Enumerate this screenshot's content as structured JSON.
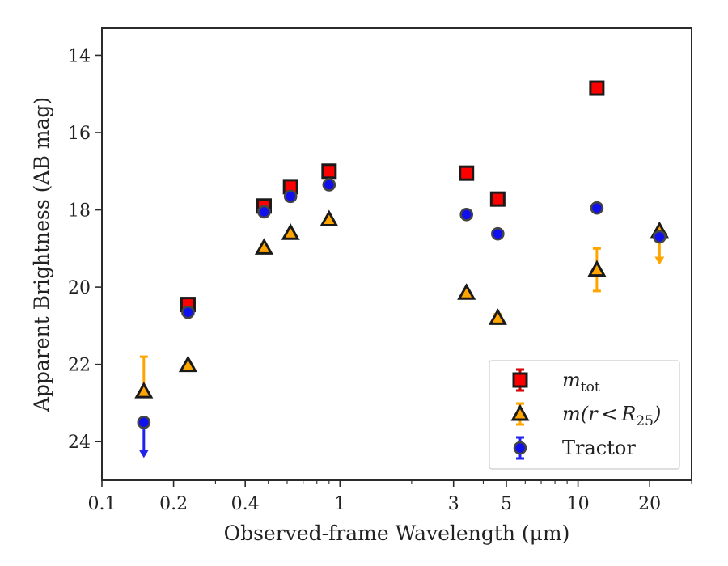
{
  "chart_data": {
    "type": "scatter",
    "title": "",
    "xlabel": "Observed-frame Wavelength (μm)",
    "ylabel": "Apparent Brightness (AB mag)",
    "xscale": "log",
    "xlim": [
      0.1,
      30
    ],
    "ylim": [
      25.0,
      13.3
    ],
    "y_inverted": true,
    "grid": false,
    "legend_position": "lower right",
    "x_ticks": [
      {
        "value": 0.1,
        "label": "0.1"
      },
      {
        "value": 0.2,
        "label": "0.2"
      },
      {
        "value": 0.4,
        "label": "0.4"
      },
      {
        "value": 1,
        "label": "1"
      },
      {
        "value": 3,
        "label": "3"
      },
      {
        "value": 5,
        "label": "5"
      },
      {
        "value": 10,
        "label": "10"
      },
      {
        "value": 20,
        "label": "20"
      }
    ],
    "y_ticks": [
      {
        "value": 14,
        "label": "14"
      },
      {
        "value": 16,
        "label": "16"
      },
      {
        "value": 18,
        "label": "18"
      },
      {
        "value": 20,
        "label": "20"
      },
      {
        "value": 22,
        "label": "22"
      },
      {
        "value": 24,
        "label": "24"
      }
    ],
    "series": [
      {
        "name": "m_tot",
        "label_main": "m",
        "label_sub": "tot",
        "marker": "square",
        "color": "#ff0000",
        "errcolor": "#d40000",
        "points": [
          {
            "x": 0.23,
            "y": 20.45
          },
          {
            "x": 0.48,
            "y": 17.9
          },
          {
            "x": 0.62,
            "y": 17.4
          },
          {
            "x": 0.9,
            "y": 17.0
          },
          {
            "x": 3.4,
            "y": 17.05
          },
          {
            "x": 4.6,
            "y": 17.72
          },
          {
            "x": 12.0,
            "y": 14.85
          }
        ]
      },
      {
        "name": "m(r < R25)",
        "label_main": "m(r < R",
        "label_sub": "25",
        "label_tail": ")",
        "marker": "triangle",
        "color": "#ffa500",
        "errcolor": "#ffa500",
        "points": [
          {
            "x": 0.15,
            "y": 22.7,
            "err_up": 0.9,
            "err_down": 0.0
          },
          {
            "x": 0.23,
            "y": 22.02
          },
          {
            "x": 0.48,
            "y": 18.98
          },
          {
            "x": 0.62,
            "y": 18.6
          },
          {
            "x": 0.9,
            "y": 18.25
          },
          {
            "x": 3.4,
            "y": 20.15
          },
          {
            "x": 4.6,
            "y": 20.8,
            "err_up": 0.1,
            "err_down": 0.1
          },
          {
            "x": 12.0,
            "y": 19.55,
            "err_up": 0.55,
            "err_down": 0.55
          },
          {
            "x": 22.0,
            "y": 18.55,
            "limit": 19.4
          }
        ]
      },
      {
        "name": "Tractor",
        "label_main": "Tractor",
        "marker": "circle",
        "color": "#1010ee",
        "errcolor": "#2222ee",
        "points": [
          {
            "x": 0.15,
            "y": 23.5,
            "limit": 24.4
          },
          {
            "x": 0.23,
            "y": 20.65
          },
          {
            "x": 0.48,
            "y": 18.05
          },
          {
            "x": 0.62,
            "y": 17.65
          },
          {
            "x": 0.9,
            "y": 17.35
          },
          {
            "x": 3.4,
            "y": 18.12
          },
          {
            "x": 4.6,
            "y": 18.62
          },
          {
            "x": 12.0,
            "y": 17.95
          },
          {
            "x": 22.0,
            "y": 18.7
          }
        ]
      }
    ]
  }
}
